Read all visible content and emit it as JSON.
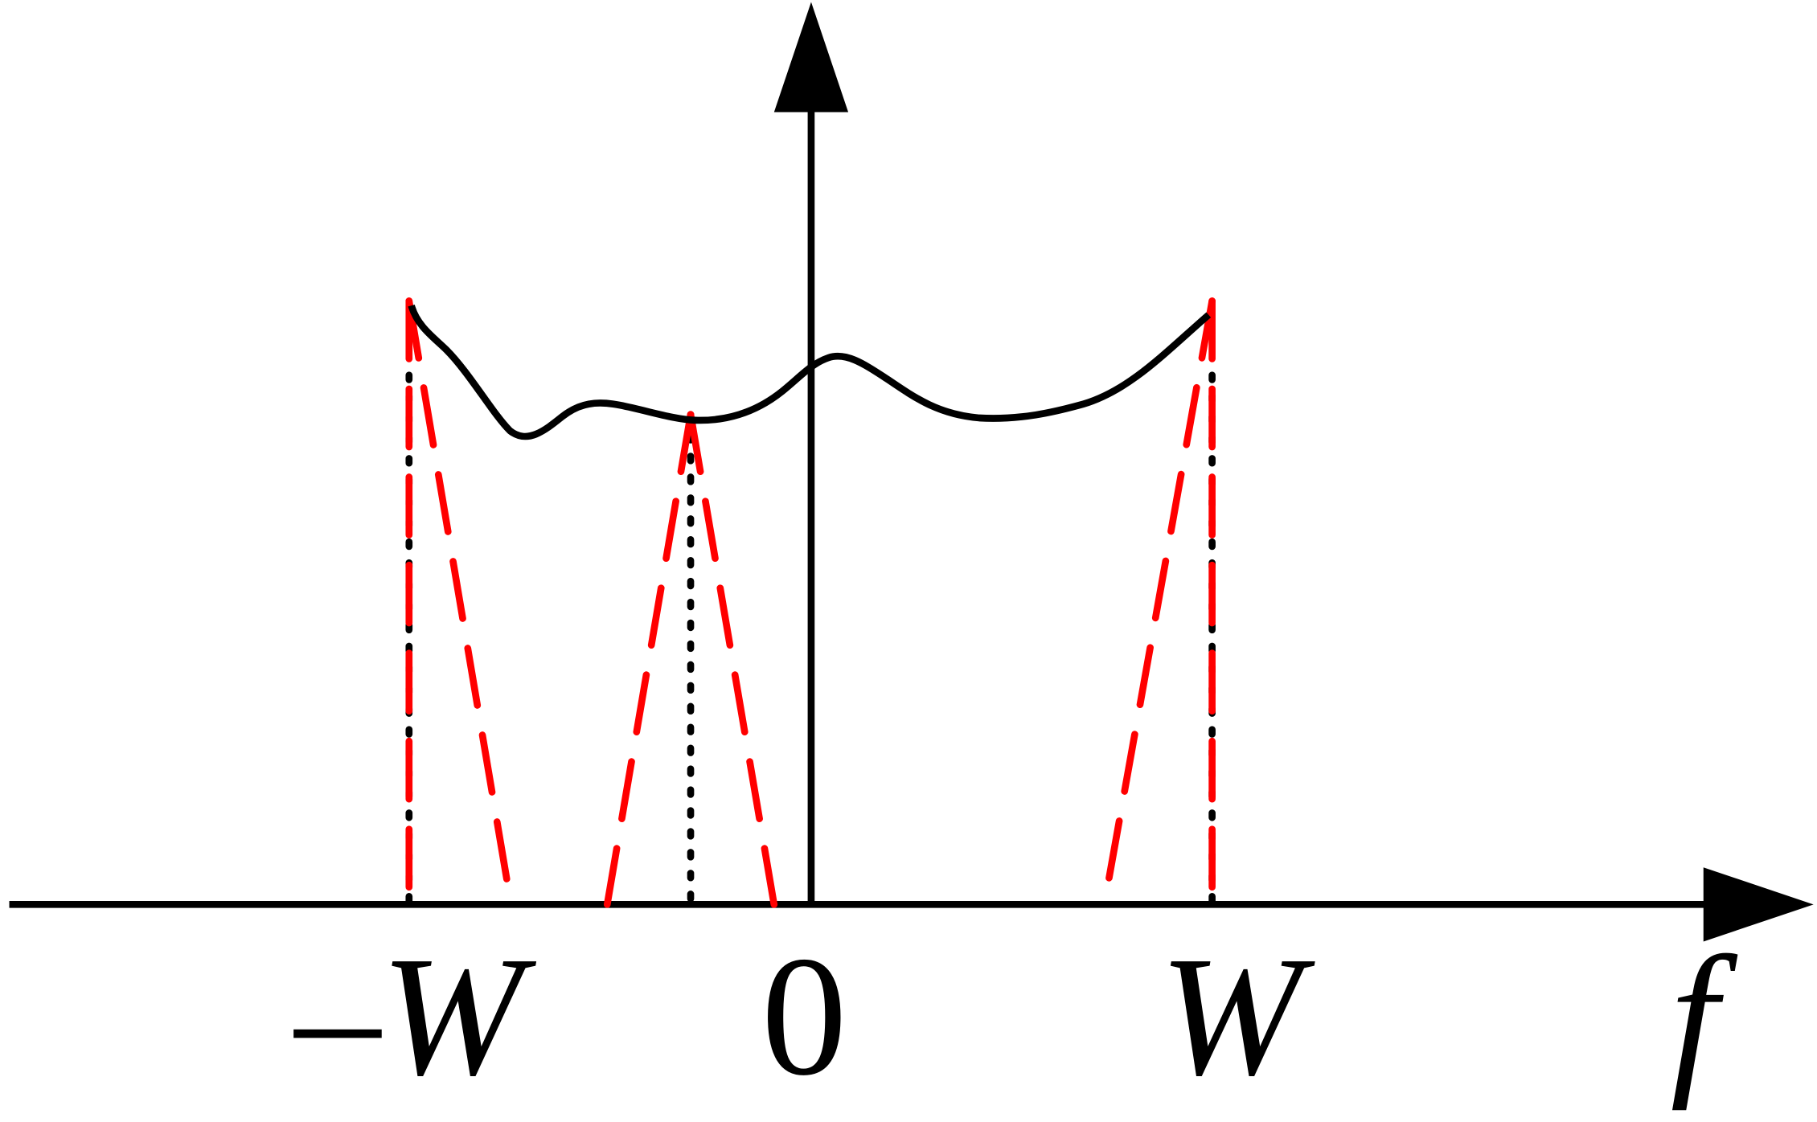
{
  "axes": {
    "x_axis_symbol": "f",
    "tick_labels": {
      "neg_w": "–W",
      "zero": "0",
      "pos_w": "W"
    }
  },
  "colors": {
    "axis": "#000000",
    "spectrum_curve": "#000000",
    "dashed_lines": "#ff0000",
    "dotted_markers": "#000000",
    "background": "#ffffff"
  }
}
